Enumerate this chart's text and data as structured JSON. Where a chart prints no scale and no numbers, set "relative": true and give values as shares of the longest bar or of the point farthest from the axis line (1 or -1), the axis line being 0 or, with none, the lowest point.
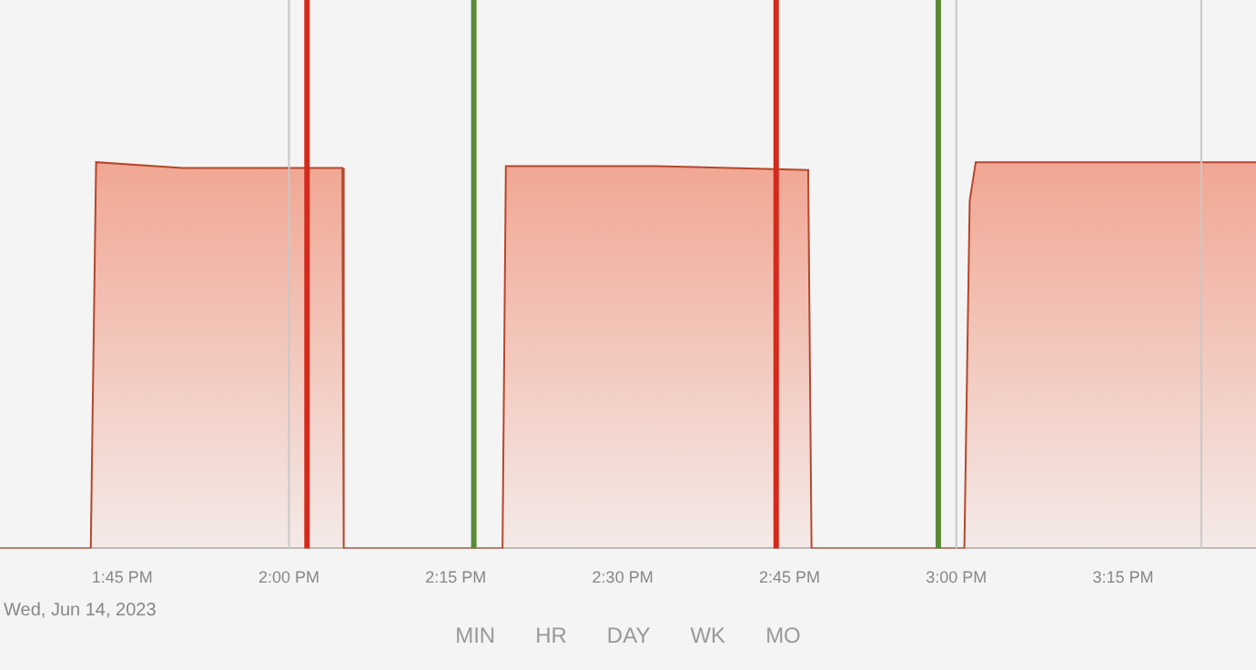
{
  "chart_data": {
    "type": "area",
    "relative": true,
    "x": [
      13.567,
      13.703,
      13.711,
      13.84,
      14.08,
      14.082,
      14.32,
      14.325,
      14.55,
      14.778,
      14.783,
      15.012,
      15.02,
      15.029,
      15.25,
      15.449
    ],
    "series": [
      {
        "color": "#f08a70",
        "values": [
          0,
          0,
          1.0,
          0.985,
          0.985,
          0,
          0,
          0.99,
          0.99,
          0.98,
          0,
          0,
          0.9,
          1.0,
          1.0,
          1.0
        ]
      }
    ],
    "xlim": [
      13.567,
      15.449
    ],
    "xticks": [
      {
        "value": 13.75,
        "label": "1:45 PM"
      },
      {
        "value": 14.0,
        "label": "2:00 PM"
      },
      {
        "value": 14.25,
        "label": "2:15 PM"
      },
      {
        "value": 14.5,
        "label": "2:30 PM"
      },
      {
        "value": 14.75,
        "label": "2:45 PM"
      },
      {
        "value": 15.0,
        "label": "3:00 PM"
      },
      {
        "value": 15.25,
        "label": "3:15 PM"
      }
    ],
    "ref_lines": [
      {
        "axis": "x",
        "value": 14.0,
        "color": "#c8c8c8"
      },
      {
        "axis": "x",
        "value": 15.0,
        "color": "#c8c8c8"
      },
      {
        "axis": "x",
        "value": 15.367,
        "color": "#c8c8c8"
      },
      {
        "axis": "x",
        "value": 14.027,
        "color": "#d42a1c"
      },
      {
        "axis": "x",
        "value": 14.277,
        "color": "#5a8a35"
      },
      {
        "axis": "x",
        "value": 14.73,
        "color": "#d42a1c"
      },
      {
        "axis": "x",
        "value": 14.973,
        "color": "#5a8a35"
      }
    ],
    "annotations": [
      "Wed, Jun 14, 2023",
      "MIN",
      "HR",
      "DAY",
      "WK",
      "MO"
    ]
  }
}
